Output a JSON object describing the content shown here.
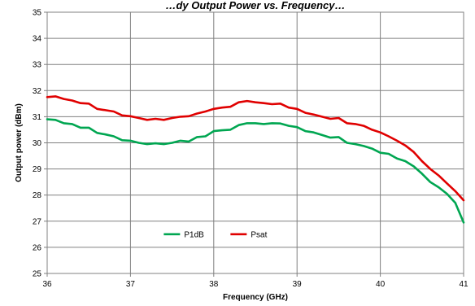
{
  "chart_data": {
    "type": "line",
    "title": "…dy Output Power vs. Frequency…",
    "xlabel": "Frequency (GHz)",
    "ylabel": "Output power (dBm)",
    "xlim": [
      36,
      41
    ],
    "ylim": [
      25,
      35
    ],
    "x_ticks": [
      "36",
      "37",
      "38",
      "39",
      "40",
      "41"
    ],
    "y_ticks": [
      "25",
      "26",
      "27",
      "28",
      "29",
      "30",
      "31",
      "32",
      "33",
      "34",
      "35"
    ],
    "grid": true,
    "legend_position": "center-left",
    "series": [
      {
        "name": "P1dB",
        "color": "#00a651",
        "x": [
          36.0,
          36.1,
          36.2,
          36.3,
          36.4,
          36.5,
          36.6,
          36.7,
          36.8,
          36.9,
          37.0,
          37.1,
          37.2,
          37.3,
          37.4,
          37.5,
          37.6,
          37.7,
          37.8,
          37.9,
          38.0,
          38.1,
          38.2,
          38.3,
          38.4,
          38.5,
          38.6,
          38.7,
          38.8,
          38.9,
          39.0,
          39.1,
          39.2,
          39.3,
          39.4,
          39.5,
          39.6,
          39.7,
          39.8,
          39.9,
          40.0,
          40.1,
          40.2,
          40.3,
          40.4,
          40.5,
          40.6,
          40.7,
          40.8,
          40.9,
          41.0
        ],
        "y": [
          30.9,
          30.88,
          30.75,
          30.72,
          30.58,
          30.58,
          30.38,
          30.32,
          30.25,
          30.1,
          30.08,
          30.0,
          29.95,
          29.98,
          29.95,
          30.0,
          30.08,
          30.05,
          30.22,
          30.25,
          30.45,
          30.48,
          30.5,
          30.68,
          30.75,
          30.75,
          30.72,
          30.75,
          30.74,
          30.65,
          30.6,
          30.45,
          30.4,
          30.3,
          30.2,
          30.22,
          30.0,
          29.95,
          29.88,
          29.78,
          29.62,
          29.58,
          29.4,
          29.3,
          29.1,
          28.82,
          28.5,
          28.3,
          28.05,
          27.7,
          26.95
        ]
      },
      {
        "name": "Psat",
        "color": "#e00000",
        "x": [
          36.0,
          36.1,
          36.2,
          36.3,
          36.4,
          36.5,
          36.6,
          36.7,
          36.8,
          36.9,
          37.0,
          37.1,
          37.2,
          37.3,
          37.4,
          37.5,
          37.6,
          37.7,
          37.8,
          37.9,
          38.0,
          38.1,
          38.2,
          38.3,
          38.4,
          38.5,
          38.6,
          38.7,
          38.8,
          38.9,
          39.0,
          39.1,
          39.2,
          39.3,
          39.4,
          39.5,
          39.6,
          39.7,
          39.8,
          39.9,
          40.0,
          40.1,
          40.2,
          40.3,
          40.4,
          40.5,
          40.6,
          40.7,
          40.8,
          40.9,
          41.0
        ],
        "y": [
          31.75,
          31.78,
          31.68,
          31.62,
          31.52,
          31.5,
          31.3,
          31.25,
          31.2,
          31.05,
          31.02,
          30.95,
          30.88,
          30.92,
          30.88,
          30.95,
          31.0,
          31.02,
          31.12,
          31.2,
          31.3,
          31.35,
          31.38,
          31.55,
          31.6,
          31.55,
          31.52,
          31.48,
          31.5,
          31.35,
          31.3,
          31.15,
          31.08,
          31.0,
          30.92,
          30.95,
          30.75,
          30.72,
          30.65,
          30.5,
          30.4,
          30.25,
          30.08,
          29.9,
          29.65,
          29.3,
          29.0,
          28.75,
          28.45,
          28.15,
          27.8
        ]
      }
    ]
  }
}
